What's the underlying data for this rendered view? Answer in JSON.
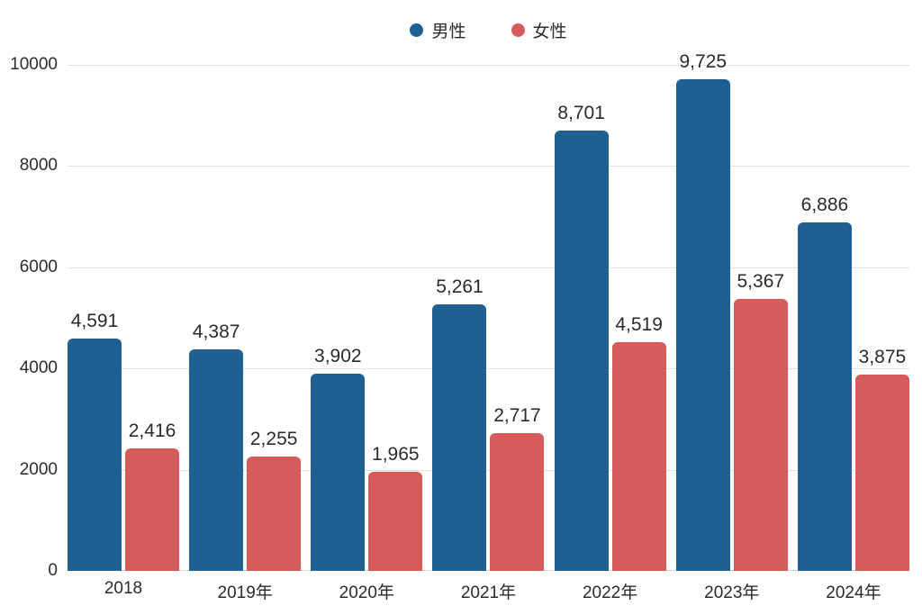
{
  "chart_data": {
    "type": "bar",
    "title": "",
    "xlabel": "",
    "ylabel": "",
    "categories": [
      "2018",
      "2019年",
      "2020年",
      "2021年",
      "2022年",
      "2023年",
      "2024年"
    ],
    "series": [
      {
        "name": "男性",
        "color": "#1E6094",
        "values": [
          4591,
          4387,
          3902,
          5261,
          8701,
          9725,
          6886
        ]
      },
      {
        "name": "女性",
        "color": "#D65C5C",
        "values": [
          2416,
          2255,
          1965,
          2717,
          4519,
          5367,
          3875
        ]
      }
    ],
    "ylim": [
      0,
      10000
    ],
    "yticks": [
      0,
      2000,
      4000,
      6000,
      8000,
      10000
    ],
    "grid": true,
    "value_labels": true,
    "legend_position": "top-center"
  },
  "colors": {
    "background": "#ffffff",
    "gridline": "#e3e3e3",
    "text": "#2b2b2b"
  }
}
